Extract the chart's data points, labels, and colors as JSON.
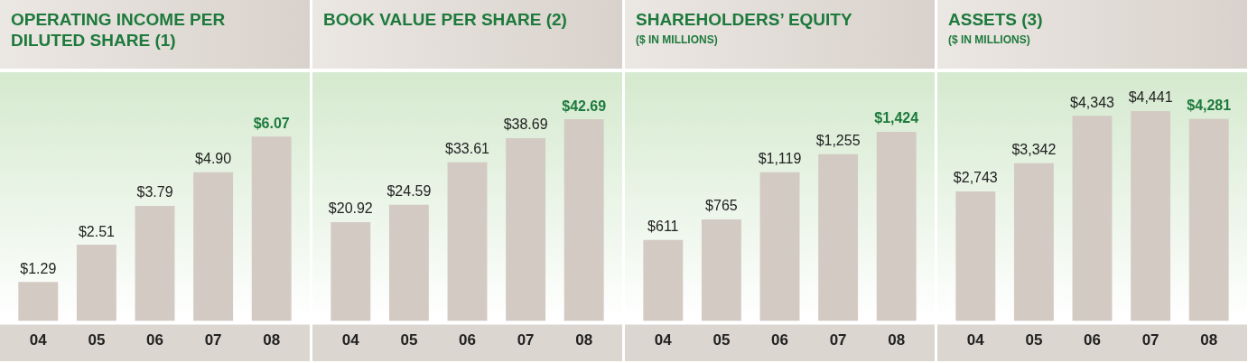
{
  "chart_data": [
    {
      "type": "bar",
      "title": "OPERATING INCOME PER DILUTED SHARE (1)",
      "categories": [
        "04",
        "05",
        "06",
        "07",
        "08"
      ],
      "values": [
        1.29,
        2.51,
        3.79,
        4.9,
        6.07
      ],
      "color": "#d3cbc3",
      "value_labels": [
        "$1.29",
        "$2.51",
        "$3.79",
        "$4.90",
        "$6.07"
      ]
    },
    {
      "type": "bar",
      "title": "BOOK VALUE PER SHARE (2)",
      "categories": [
        "04",
        "05",
        "06",
        "07",
        "08"
      ],
      "values": [
        20.92,
        24.59,
        33.61,
        38.69,
        42.69
      ],
      "color": "#d3cbc3",
      "value_labels": [
        "$20.92",
        "$24.59",
        "$33.61",
        "$38.69",
        "$42.69"
      ]
    },
    {
      "type": "bar",
      "title": "SHAREHOLDERS’ EQUITY",
      "subtitle": "($ IN MILLIONS)",
      "categories": [
        "04",
        "05",
        "06",
        "07",
        "08"
      ],
      "values": [
        611,
        765,
        1119,
        1255,
        1424
      ],
      "color": "#d3cbc3",
      "value_labels": [
        "$611",
        "$765",
        "$1,119",
        "$1,255",
        "$1,424"
      ]
    },
    {
      "type": "bar",
      "title": "ASSETS (3)",
      "subtitle": "($ IN MILLIONS)",
      "categories": [
        "04",
        "05",
        "06",
        "07",
        "08"
      ],
      "values": [
        2743,
        3342,
        4343,
        4441,
        4281
      ],
      "color": "#d3cbc3",
      "value_labels": [
        "$2,743",
        "$3,342",
        "$4,343",
        "$4,441",
        "$4,281"
      ]
    }
  ]
}
